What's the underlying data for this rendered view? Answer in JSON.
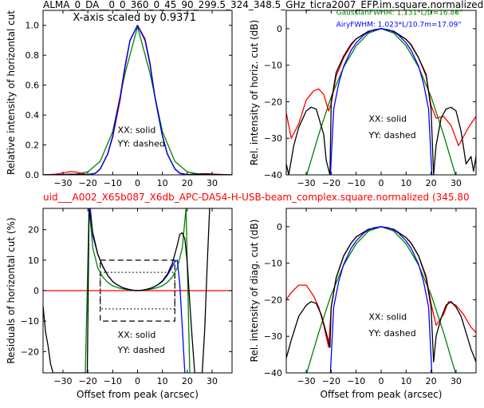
{
  "figure": {
    "title_top": "ALMA_0_DA__0_0_360_0_45_90_299.5_324_348.5_GHz_ticra2007_EFP.im.square.normalized",
    "title_mid": "uid___A002_X65b087_X6db_APC-DA54-H-USB-beam_complex.square.normalized (345.80",
    "title_mid_color": "#ff0000"
  },
  "chart_data": [
    {
      "id": "p1",
      "type": "line",
      "ylabel": "Relative intensity of horizontal cut",
      "xlabel": "",
      "xlim": [
        -38,
        38
      ],
      "ylim": [
        0,
        1.1
      ],
      "xticks": [
        -30,
        -20,
        -10,
        0,
        10,
        20,
        30
      ],
      "yticks": [
        0.0,
        0.2,
        0.4,
        0.6,
        0.8,
        1.0
      ],
      "ytick_labels": [
        "0.0",
        "0.2",
        "0.4",
        "0.6",
        "0.8",
        "1.0"
      ],
      "annotations": [
        {
          "text": "X-axis scaled by 0.9371",
          "x": -26,
          "y": 1.03
        },
        {
          "text": "XX: solid",
          "x": -8,
          "y": 0.28
        },
        {
          "text": "YY: dashed",
          "x": -8,
          "y": 0.19
        }
      ],
      "series": [
        {
          "color": "#008000",
          "style": "solid",
          "x": [
            -38,
            -30,
            -25,
            -20,
            -15,
            -10,
            -5,
            0,
            5,
            10,
            15,
            20,
            25,
            30,
            38
          ],
          "y": [
            0,
            0.001,
            0.004,
            0.02,
            0.09,
            0.29,
            0.68,
            0.99,
            0.68,
            0.29,
            0.09,
            0.02,
            0.004,
            0.001,
            0
          ]
        },
        {
          "color": "#ff0000",
          "style": "solid",
          "x": [
            -38,
            -33,
            -30,
            -27,
            -25,
            -22,
            -20,
            -17,
            -15,
            -12,
            -10,
            -7,
            -5,
            -3,
            0,
            3,
            5,
            7,
            10,
            12,
            15,
            17,
            20,
            22,
            25,
            28,
            30,
            33,
            38
          ],
          "y": [
            0,
            0.005,
            0.012,
            0.022,
            0.02,
            0.008,
            0.002,
            0.01,
            0.04,
            0.14,
            0.25,
            0.5,
            0.72,
            0.9,
            1.0,
            0.91,
            0.75,
            0.52,
            0.26,
            0.14,
            0.04,
            0.012,
            0.002,
            0.003,
            0.006,
            0.008,
            0.006,
            0.003,
            0
          ]
        },
        {
          "color": "#000000",
          "style": "solid",
          "x": [
            -38,
            -30,
            -27,
            -25,
            -22,
            -20,
            -17,
            -15,
            -12,
            -10,
            -7,
            -5,
            -3,
            0,
            3,
            5,
            7,
            10,
            12,
            15,
            17,
            20,
            22,
            25,
            27,
            30,
            38
          ],
          "y": [
            0,
            0.002,
            0.005,
            0.005,
            0.003,
            0.001,
            0.01,
            0.04,
            0.14,
            0.26,
            0.52,
            0.73,
            0.9,
            1.0,
            0.9,
            0.74,
            0.52,
            0.26,
            0.14,
            0.04,
            0.01,
            0.001,
            0.003,
            0.006,
            0.006,
            0.003,
            0
          ]
        },
        {
          "color": "#0000ff",
          "style": "solid",
          "x": [
            -38,
            -25,
            -20,
            -17,
            -15,
            -12,
            -10,
            -7,
            -5,
            -3,
            0,
            3,
            5,
            7,
            10,
            12,
            15,
            17,
            20,
            25,
            38
          ],
          "y": [
            0,
            0,
            0.0,
            0.01,
            0.04,
            0.14,
            0.26,
            0.52,
            0.73,
            0.9,
            1.0,
            0.9,
            0.74,
            0.52,
            0.26,
            0.14,
            0.04,
            0.01,
            0.0,
            0,
            0
          ]
        }
      ]
    },
    {
      "id": "p2",
      "type": "line",
      "ylabel": "Rel. intensity of horiz. cut (dB)",
      "xlabel": "",
      "xlim": [
        -38,
        38
      ],
      "ylim": [
        -40,
        5
      ],
      "xticks": [
        -30,
        -20,
        -10,
        0,
        10,
        20,
        30
      ],
      "yticks": [
        0,
        -10,
        -20,
        -30,
        -40
      ],
      "ytick_labels": [
        "0",
        "−10",
        "−20",
        "−30",
        "−40"
      ],
      "annotations": [
        {
          "text": "GaussianFWHM: 1.131*L/D=16.86\"",
          "x": -18,
          "y": 3.8,
          "color": "#008000"
        },
        {
          "text": "AiryFWHM: 1.023*L/10.7m=17.09\"",
          "x": -18,
          "y": 0.5,
          "color": "#0000ff"
        },
        {
          "text": "XX: solid",
          "x": -5,
          "y": -25.5
        },
        {
          "text": "YY: dashed",
          "x": -5,
          "y": -30
        }
      ],
      "series": [
        {
          "color": "#008000",
          "style": "solid",
          "x": [
            -30,
            -25,
            -20,
            -15,
            -10,
            -5,
            0,
            5,
            10,
            15,
            20,
            25,
            30
          ],
          "y": [
            -40.5,
            -29,
            -18.6,
            -10.5,
            -4.7,
            -1.2,
            0,
            -1.2,
            -4.7,
            -10.5,
            -18.6,
            -29,
            -40.5
          ]
        },
        {
          "color": "#ff0000",
          "style": "solid",
          "x": [
            -38,
            -36,
            -33,
            -30,
            -27,
            -25,
            -23,
            -21,
            -20,
            -18,
            -15,
            -12,
            -10,
            -5,
            0,
            5,
            10,
            12,
            15,
            18,
            20,
            22,
            25,
            28,
            31,
            35,
            38
          ],
          "y": [
            -23,
            -30,
            -26,
            -19.5,
            -17,
            -16.5,
            -18,
            -22.5,
            -20.5,
            -13,
            -8,
            -4.5,
            -2.8,
            -0.7,
            0,
            -0.7,
            -3,
            -4.3,
            -8,
            -13,
            -21,
            -24.5,
            -24,
            -26.5,
            -32,
            -27,
            -24
          ]
        },
        {
          "color": "#000000",
          "style": "solid",
          "x": [
            -38,
            -37,
            -35,
            -33,
            -30,
            -28,
            -26,
            -23,
            -22,
            -20.5,
            -20,
            -18,
            -15,
            -12,
            -10,
            -5,
            0,
            5,
            10,
            12,
            15,
            18,
            20,
            21,
            22,
            24,
            26,
            28,
            30,
            32,
            34,
            36,
            37,
            38
          ],
          "y": [
            -37,
            -40,
            -32,
            -27,
            -22.5,
            -21.5,
            -22,
            -29,
            -36,
            -40,
            -20,
            -12,
            -7.5,
            -4.2,
            -2.8,
            -0.7,
            0,
            -0.7,
            -2.9,
            -4.5,
            -8,
            -12.5,
            -22,
            -40,
            -32,
            -24.5,
            -22,
            -21.5,
            -22.5,
            -28,
            -37,
            -35,
            -39,
            -35
          ]
        },
        {
          "color": "#0000ff",
          "style": "solid",
          "x": [
            -20.3,
            -19,
            -17,
            -15,
            -12,
            -10,
            -7,
            -5,
            -3,
            0,
            3,
            5,
            7,
            10,
            12,
            15,
            17,
            19,
            20.3
          ],
          "y": [
            -40,
            -22,
            -15,
            -10.3,
            -5.9,
            -3.9,
            -1.8,
            -0.9,
            -0.3,
            0,
            -0.3,
            -0.9,
            -1.8,
            -3.9,
            -5.9,
            -10.3,
            -15,
            -22,
            -40
          ]
        }
      ]
    },
    {
      "id": "p3",
      "type": "line",
      "ylabel": "Residuals of horizontal cut (%)",
      "xlabel": "Offset from peak (arcsec)",
      "xlim": [
        -38,
        38
      ],
      "ylim": [
        -27,
        27
      ],
      "xticks": [
        -30,
        -20,
        -10,
        0,
        10,
        20,
        30
      ],
      "yticks": [
        20,
        10,
        0,
        -10,
        -20
      ],
      "ytick_labels": [
        "20",
        "10",
        "0",
        "−10",
        "−20"
      ],
      "annotations": [
        {
          "text": "XX: solid",
          "x": -8,
          "y": -15.5
        },
        {
          "text": "YY: dashed",
          "x": -8,
          "y": -20.5
        }
      ],
      "boxes": [
        {
          "style": "dashed",
          "x": [
            -15,
            15
          ],
          "y": [
            -10,
            10
          ]
        },
        {
          "style": "dotted",
          "x": [
            -15,
            15
          ],
          "y": [
            -6,
            6
          ]
        }
      ],
      "series": [
        {
          "color": "#ff0000",
          "style": "solid",
          "x": [
            -38,
            38
          ],
          "y": [
            0,
            0
          ]
        },
        {
          "color": "#008000",
          "style": "solid",
          "x": [
            -21,
            -19.5,
            -18,
            -16,
            -14,
            -12,
            -10,
            -8,
            -6,
            -4,
            -2,
            0,
            2,
            4,
            6,
            8,
            10,
            12,
            14,
            16,
            18,
            19.5,
            21
          ],
          "y": [
            -27,
            27,
            14,
            7.5,
            4.5,
            2.7,
            1.6,
            1.0,
            0.6,
            0.3,
            0.1,
            0,
            0.1,
            0.3,
            0.6,
            1.0,
            1.6,
            2.7,
            4.5,
            7.5,
            14,
            27,
            -27
          ]
        },
        {
          "color": "#0000ff",
          "style": "solid",
          "x": [
            -19,
            -18,
            -16,
            -14,
            -12,
            -10,
            -8,
            -6,
            -4,
            -2,
            0,
            2,
            4,
            6,
            8,
            10,
            12,
            14,
            15,
            16,
            17,
            18,
            19
          ],
          "y": [
            27,
            18,
            12,
            8,
            5,
            3,
            1.8,
            1.0,
            0.5,
            0.15,
            0,
            0.15,
            0.5,
            1.0,
            1.8,
            3,
            5,
            8,
            9.5,
            10,
            2,
            -12,
            -27
          ]
        },
        {
          "color": "#000000",
          "style": "solid",
          "x": [
            -38,
            -37,
            -36,
            -35,
            -34,
            -33,
            -32,
            -20.2,
            -19.5,
            -18,
            -16,
            -14,
            -12,
            -10,
            -8,
            -6,
            -4,
            -2,
            0,
            2,
            4,
            6,
            8,
            10,
            12,
            14,
            16,
            17,
            18,
            19,
            20,
            21,
            22,
            23,
            23.5,
            24.5,
            25,
            26,
            27,
            28,
            29
          ],
          "y": [
            -5,
            -13.5,
            -18,
            -24,
            -27,
            -27,
            -27,
            -27,
            27,
            19,
            12,
            8,
            5,
            3,
            1.8,
            1.0,
            0.5,
            0.15,
            0,
            0.15,
            0.5,
            1.0,
            1.8,
            3.2,
            5.4,
            9,
            15,
            18.5,
            19,
            17,
            9,
            -4,
            -16,
            -27,
            -27,
            -27,
            -27,
            -27,
            -13,
            8,
            27
          ]
        }
      ]
    },
    {
      "id": "p4",
      "type": "line",
      "ylabel": "Rel. intensity of diag. cut (dB)",
      "xlabel": "Offset from peak (arcsec)",
      "xlim": [
        -38,
        38
      ],
      "ylim": [
        -40,
        5
      ],
      "xticks": [
        -30,
        -20,
        -10,
        0,
        10,
        20,
        30
      ],
      "yticks": [
        0,
        -10,
        -20,
        -30,
        -40
      ],
      "ytick_labels": [
        "0",
        "−10",
        "−20",
        "−30",
        "−40"
      ],
      "annotations": [
        {
          "text": "XX: solid",
          "x": -5,
          "y": -25.5
        },
        {
          "text": "YY: dashed",
          "x": -5,
          "y": -30
        }
      ],
      "series": [
        {
          "color": "#008000",
          "style": "solid",
          "x": [
            -30,
            -25,
            -20,
            -15,
            -10,
            -5,
            0,
            5,
            10,
            15,
            20,
            25,
            30
          ],
          "y": [
            -40.5,
            -29,
            -18.6,
            -10.5,
            -4.7,
            -1.2,
            0,
            -1.2,
            -4.7,
            -10.5,
            -18.6,
            -29,
            -40.5
          ]
        },
        {
          "color": "#ff0000",
          "style": "solid",
          "x": [
            -38,
            -36,
            -33,
            -30,
            -27,
            -25,
            -23,
            -21,
            -20,
            -18,
            -15,
            -12,
            -10,
            -5,
            0,
            5,
            10,
            12,
            15,
            18,
            20,
            22,
            25,
            27,
            30,
            33,
            36,
            38
          ],
          "y": [
            -20,
            -18,
            -16,
            -16,
            -19,
            -22,
            -27,
            -33,
            -22,
            -14,
            -8,
            -4.5,
            -2.8,
            -0.7,
            0,
            -0.7,
            -3,
            -4.5,
            -8,
            -13.5,
            -21,
            -27,
            -24,
            -20.5,
            -21.5,
            -24,
            -27.5,
            -29
          ]
        },
        {
          "color": "#000000",
          "style": "solid",
          "x": [
            -38,
            -36,
            -33,
            -30,
            -28,
            -26,
            -24,
            -22,
            -20.5,
            -20,
            -18,
            -15,
            -12,
            -10,
            -5,
            0,
            5,
            10,
            12,
            15,
            18,
            20,
            21,
            22,
            24,
            26,
            28,
            30,
            32,
            34,
            36,
            38
          ],
          "y": [
            -36,
            -31,
            -24.5,
            -21.5,
            -20.5,
            -21,
            -24,
            -29,
            -33,
            -22,
            -14,
            -8,
            -4.5,
            -2.8,
            -0.7,
            0,
            -0.7,
            -3,
            -4.5,
            -8,
            -14,
            -22,
            -37,
            -30,
            -25,
            -21.5,
            -20.5,
            -22,
            -24.5,
            -29,
            -33.5,
            -37
          ]
        },
        {
          "color": "#0000ff",
          "style": "solid",
          "x": [
            -20.3,
            -19,
            -17,
            -15,
            -12,
            -10,
            -7,
            -5,
            -3,
            0,
            3,
            5,
            7,
            10,
            12,
            15,
            17,
            19,
            20.3
          ],
          "y": [
            -40,
            -22,
            -15,
            -10.3,
            -5.9,
            -3.9,
            -1.8,
            -0.9,
            -0.3,
            0,
            -0.3,
            -0.9,
            -1.8,
            -3.9,
            -5.9,
            -10.3,
            -15,
            -22,
            -40
          ]
        }
      ]
    }
  ]
}
